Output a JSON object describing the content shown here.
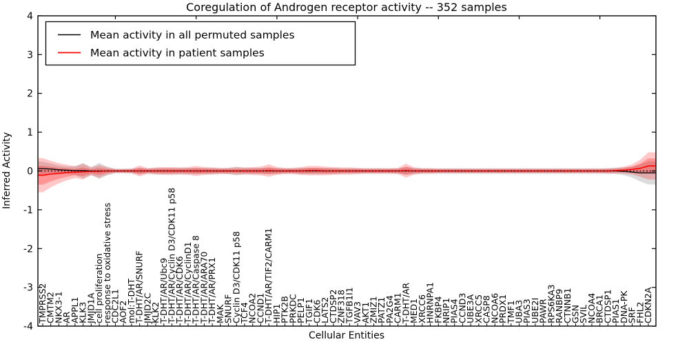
{
  "title": "Coregulation of Androgen receptor activity -- 352 samples",
  "legend": {
    "entries": [
      {
        "label": "Mean activity in all permuted samples",
        "color": "#000000"
      },
      {
        "label": "Mean activity in patient samples",
        "color": "#ff0000"
      }
    ]
  },
  "chart_data": {
    "type": "line",
    "title": "Coregulation of Androgen receptor activity -- 352 samples",
    "xlabel": "Cellular Entities",
    "ylabel": "Inferred Activity",
    "ylim": [
      -4,
      4
    ],
    "yticks": [
      -4,
      -3,
      -2,
      -1,
      0,
      1,
      2,
      3,
      4
    ],
    "grid": false,
    "legend_position": "upper left",
    "zero_line": {
      "y": 0,
      "style": "dotted",
      "color": "#000000"
    },
    "categories": [
      "TMPRSS2",
      "CMTM2",
      "NKX3-1",
      "AR",
      "APPL1",
      "KLK3",
      "JMJD1A",
      "cell proliferation",
      "response to oxidative stress",
      "CDC2L1",
      "AOF2",
      "mol:T-DHT",
      "T-DHT/AR/SNURF",
      "JMJD2C",
      "KLK2",
      "T-DHT/AR/Ubc9",
      "T-DHT/AR/Cyclin D3/CDK11 p58",
      "T-DHT/AR/CDK6",
      "T-DHT/AR/CyclinD1",
      "T-DHT/AR/Caspase 8",
      "T-DHT/AR/ARA70",
      "T-DHT/AR/PRX1",
      "MAK",
      "SNURF",
      "Cyclin D3/CDK11 p58",
      "TCF4",
      "NCOA2",
      "CCND1",
      "T-DHT/AR/TIF2/CARM1",
      "HIP1",
      "PTK2B",
      "PRKDC",
      "PELP1",
      "TGIF1",
      "CDK6",
      "LATS2",
      "CTDSP2",
      "ZNF318",
      "TGFB1I1",
      "VAV3",
      "AKT1",
      "ZMIZ1",
      "PATZ1",
      "PA2G4",
      "CARM1",
      "T-DHT/AR",
      "MED1",
      "XRCC6",
      "HNRNPA1",
      "FKBP4",
      "NRIP1",
      "PIAS4",
      "CCND3",
      "UBE3A",
      "XRCC5",
      "CASP8",
      "NCOA6",
      "PRDX1",
      "TMF1",
      "UBA3",
      "PIAS3",
      "UBE2I",
      "PAWR",
      "RPS6KA3",
      "RANBP9",
      "CTNNB1",
      "GSN",
      "SVIL",
      "NCOA4",
      "BRCA1",
      "CTDSP1",
      "PIAS1",
      "DNA-PK",
      "SRF",
      "FHL2",
      "CDKN2A"
    ],
    "series": [
      {
        "name": "Mean activity in all permuted samples",
        "color": "#000000",
        "band_color": "rgba(128,128,128,0.28)",
        "values": [
          0.06,
          0.05,
          0.03,
          0.02,
          0.01,
          0.01,
          0,
          0,
          0,
          0,
          0,
          0,
          0,
          0,
          0,
          0,
          0,
          0,
          0,
          0,
          0,
          0,
          0,
          0,
          0,
          0,
          0,
          0,
          0,
          0,
          0,
          0,
          0,
          0,
          0,
          0,
          0,
          0,
          0,
          0,
          0,
          0,
          0,
          0,
          0,
          0,
          0,
          0,
          0,
          0,
          0,
          0,
          0,
          0,
          0,
          0,
          0,
          0,
          0,
          0,
          0,
          0,
          0,
          0,
          0,
          0,
          0,
          0,
          0,
          0,
          0,
          0,
          -0.01,
          -0.03,
          -0.05,
          -0.05
        ],
        "band_halfwidth": [
          0.18,
          0.14,
          0.11,
          0.09,
          0.11,
          0.2,
          0.1,
          0.21,
          0.11,
          0.06,
          0.06,
          0.06,
          0.08,
          0.07,
          0.08,
          0.08,
          0.08,
          0.08,
          0.08,
          0.08,
          0.08,
          0.08,
          0.07,
          0.08,
          0.11,
          0.08,
          0.08,
          0.08,
          0.08,
          0.08,
          0.07,
          0.07,
          0.08,
          0.08,
          0.08,
          0.08,
          0.08,
          0.07,
          0.07,
          0.07,
          0.07,
          0.07,
          0.07,
          0.07,
          0.07,
          0.1,
          0.08,
          0.07,
          0.07,
          0.07,
          0.07,
          0.07,
          0.07,
          0.07,
          0.07,
          0.07,
          0.07,
          0.07,
          0.07,
          0.07,
          0.07,
          0.07,
          0.07,
          0.07,
          0.07,
          0.07,
          0.07,
          0.07,
          0.07,
          0.07,
          0.07,
          0.08,
          0.1,
          0.14,
          0.22,
          0.3
        ]
      },
      {
        "name": "Mean activity in patient samples",
        "color": "#ff0000",
        "band_color": "rgba(255,0,0,0.22)",
        "values": [
          -0.11,
          -0.08,
          -0.06,
          -0.04,
          -0.03,
          -0.02,
          -0.01,
          -0.01,
          0,
          0,
          0,
          0,
          0,
          0,
          0,
          0,
          0,
          0,
          0,
          0,
          0,
          0,
          0,
          0,
          0,
          0,
          0,
          0,
          0.01,
          0,
          0,
          0,
          0,
          0.01,
          0.01,
          0,
          0,
          0,
          0,
          0,
          0,
          0,
          0,
          0,
          0,
          0.01,
          0,
          0,
          0,
          0,
          0,
          0,
          0,
          0,
          0,
          0,
          0,
          0,
          0,
          0,
          0,
          0,
          0,
          0,
          0,
          0,
          0,
          0,
          0,
          0,
          0,
          0.01,
          0.02,
          0.04,
          0.07,
          0.13
        ],
        "band_halfwidth": [
          0.44,
          0.34,
          0.26,
          0.2,
          0.15,
          0.2,
          0.1,
          0.16,
          0.09,
          0.05,
          0.05,
          0.06,
          0.14,
          0.07,
          0.09,
          0.1,
          0.1,
          0.09,
          0.1,
          0.13,
          0.1,
          0.09,
          0.08,
          0.08,
          0.09,
          0.09,
          0.1,
          0.11,
          0.16,
          0.1,
          0.08,
          0.08,
          0.1,
          0.12,
          0.12,
          0.11,
          0.1,
          0.09,
          0.09,
          0.08,
          0.07,
          0.07,
          0.07,
          0.07,
          0.08,
          0.18,
          0.09,
          0.07,
          0.07,
          0.06,
          0.06,
          0.06,
          0.06,
          0.06,
          0.06,
          0.06,
          0.06,
          0.06,
          0.06,
          0.06,
          0.06,
          0.06,
          0.06,
          0.06,
          0.06,
          0.06,
          0.06,
          0.06,
          0.06,
          0.06,
          0.07,
          0.07,
          0.09,
          0.13,
          0.22,
          0.35
        ]
      }
    ]
  }
}
